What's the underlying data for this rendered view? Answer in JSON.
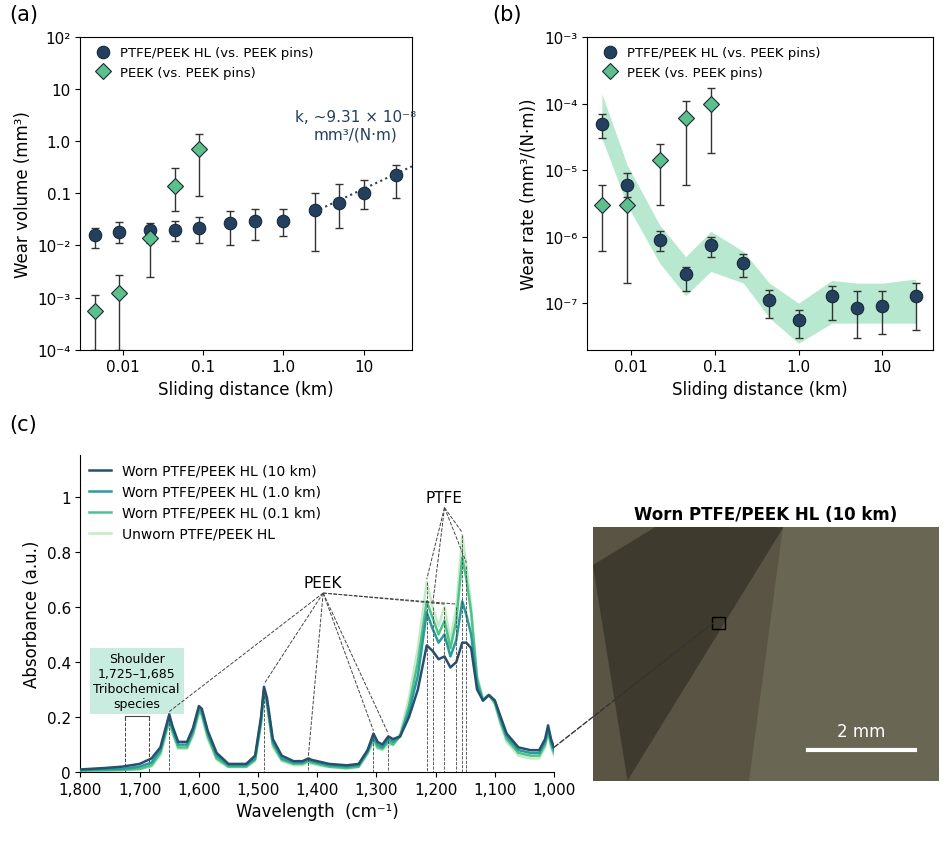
{
  "chart_data": [
    {
      "type": "scatter",
      "panel": "(a)",
      "x_label": "Sliding distance (km)",
      "y_label": "Wear volume (mm³)",
      "log": true,
      "legend": "upper left",
      "xlim": [
        0.003,
        40
      ],
      "ylim": [
        0.0001,
        100
      ],
      "xticks": [
        0.01,
        0.1,
        {
          "value": 1,
          "label": "1.0"
        },
        10
      ],
      "yticks": [
        {
          "value": 0.0001,
          "label": "10⁻⁴"
        },
        {
          "value": 0.001,
          "label": "10⁻³"
        },
        {
          "value": 0.01,
          "label": "10⁻²"
        },
        0.1,
        {
          "value": 1,
          "label": "1.0"
        },
        10,
        {
          "value": 100,
          "label": "10²"
        }
      ],
      "series": [
        {
          "name": "PTFE/PEEK HL (vs. PEEK pins)",
          "color": "#23405e",
          "marker": "circle",
          "x": [
            0.0045,
            0.009,
            0.022,
            0.045,
            0.09,
            0.22,
            0.45,
            1.0,
            2.5,
            5,
            10,
            25
          ],
          "values": [
            0.016,
            0.018,
            0.02,
            0.02,
            0.022,
            0.027,
            0.029,
            0.03,
            0.048,
            0.065,
            0.1,
            0.23
          ],
          "lower": [
            0.009,
            0.011,
            0.011,
            0.012,
            0.011,
            0.01,
            0.013,
            0.015,
            0.008,
            0.022,
            0.05,
            0.08
          ],
          "upper": [
            0.022,
            0.028,
            0.027,
            0.03,
            0.035,
            0.045,
            0.05,
            0.05,
            0.1,
            0.15,
            0.18,
            0.35
          ]
        },
        {
          "name": "PEEK (vs. PEEK pins)",
          "color": "#5cc08a",
          "marker": "diamond",
          "x": [
            0.0045,
            0.009,
            0.022,
            0.045,
            0.09
          ],
          "values": [
            0.00055,
            0.0012,
            0.014,
            0.14,
            0.7
          ],
          "lower": [
            0.0001,
            0.0001,
            0.0025,
            0.045,
            0.09
          ],
          "upper": [
            0.0011,
            0.0027,
            0.02,
            0.3,
            1.4
          ]
        }
      ],
      "fit_line": {
        "x": [
          2.5,
          40
        ],
        "values": [
          0.045,
          0.33
        ],
        "color": "#23405e",
        "line_style": "dotted"
      },
      "annotation": {
        "text": "k, ~9.31 × 10⁻⁸\nmm³/(N·m)",
        "x": 8,
        "y": 1.0,
        "color": "#23405e"
      }
    },
    {
      "type": "scatter",
      "panel": "(b)",
      "x_label": "Sliding distance (km)",
      "y_label": "Wear rate (mm³/(N·m))",
      "log": true,
      "legend": "upper left",
      "xlim": [
        0.003,
        40
      ],
      "ylim": [
        2e-08,
        0.001
      ],
      "xticks": [
        0.01,
        0.1,
        {
          "value": 1,
          "label": "1.0"
        },
        10
      ],
      "yticks": [
        {
          "value": 1e-07,
          "label": "10⁻⁷"
        },
        {
          "value": 1e-06,
          "label": "10⁻⁶"
        },
        {
          "value": 1e-05,
          "label": "10⁻⁵"
        },
        {
          "value": 0.0001,
          "label": "10⁻⁴"
        },
        {
          "value": 0.001,
          "label": "10⁻³"
        }
      ],
      "series": [
        {
          "name": "PTFE/PEEK HL (vs. PEEK pins)",
          "color": "#23405e",
          "marker": "circle",
          "x": [
            0.0045,
            0.009,
            0.022,
            0.045,
            0.09,
            0.22,
            0.45,
            1.0,
            2.5,
            5,
            10,
            25
          ],
          "values": [
            5e-05,
            6e-06,
            9e-07,
            2.7e-07,
            7.5e-07,
            4e-07,
            1.1e-07,
            5.5e-08,
            1.3e-07,
            8.5e-08,
            9e-08,
            1.3e-07
          ],
          "lower": [
            3e-05,
            4e-06,
            6e-07,
            1.5e-07,
            5e-07,
            2.5e-07,
            6e-08,
            3e-08,
            5.5e-08,
            3e-08,
            3.5e-08,
            4e-08
          ],
          "upper": [
            7e-05,
            9e-06,
            1.2e-06,
            3.5e-07,
            1e-06,
            5.5e-07,
            1.6e-07,
            8e-08,
            1.8e-07,
            1.5e-07,
            1.5e-07,
            2e-07
          ],
          "band": {
            "color": "#a6e3c4",
            "lower": [
              3e-05,
              3e-06,
              4e-07,
              1.3e-07,
              3e-07,
              2e-07,
              6e-08,
              2.5e-08,
              5e-08,
              5e-08,
              5e-08,
              5e-08
            ],
            "upper": [
              0.00014,
              1.2e-05,
              1.5e-06,
              5e-07,
              1.2e-06,
              6e-07,
              2e-07,
              1e-07,
              2.2e-07,
              2e-07,
              2e-07,
              2.3e-07
            ]
          }
        },
        {
          "name": "PEEK (vs. PEEK pins)",
          "color": "#5cc08a",
          "marker": "diamond",
          "x": [
            0.0045,
            0.009,
            0.022,
            0.045,
            0.09
          ],
          "values": [
            3e-06,
            3e-06,
            1.4e-05,
            6e-05,
            0.0001
          ],
          "lower": [
            6e-07,
            2e-07,
            3e-06,
            6e-06,
            1.8e-05
          ],
          "upper": [
            6e-06,
            6e-06,
            2.5e-05,
            0.00011,
            0.00017
          ]
        }
      ]
    },
    {
      "type": "line",
      "panel": "(c)",
      "x_label": "Wavelength  (cm⁻¹)",
      "y_label": "Absorbance (a.u.)",
      "legend": "upper left",
      "xlim": [
        1800,
        1000
      ],
      "ylim": [
        0,
        1.15
      ],
      "xticks": [
        {
          "value": 1800,
          "label": "1,800"
        },
        {
          "value": 1700,
          "label": "1,700"
        },
        {
          "value": 1600,
          "label": "1,600"
        },
        {
          "value": 1500,
          "label": "1,500"
        },
        {
          "value": 1400,
          "label": "1,400"
        },
        {
          "value": 1300,
          "label": "1,300"
        },
        {
          "value": 1200,
          "label": "1,200"
        },
        {
          "value": 1100,
          "label": "1,100"
        },
        {
          "value": 1000,
          "label": "1,000"
        }
      ],
      "yticks": [
        0,
        0.2,
        0.4,
        0.6,
        0.8,
        1
      ],
      "x": [
        1800,
        1760,
        1730,
        1700,
        1680,
        1665,
        1655,
        1650,
        1645,
        1635,
        1620,
        1610,
        1600,
        1595,
        1585,
        1570,
        1550,
        1520,
        1505,
        1495,
        1490,
        1485,
        1475,
        1460,
        1440,
        1425,
        1415,
        1410,
        1400,
        1380,
        1350,
        1330,
        1315,
        1305,
        1298,
        1290,
        1280,
        1272,
        1260,
        1245,
        1230,
        1215,
        1205,
        1195,
        1185,
        1175,
        1165,
        1155,
        1148,
        1140,
        1130,
        1120,
        1110,
        1100,
        1090,
        1080,
        1060,
        1040,
        1025,
        1015,
        1010,
        1005,
        1000
      ],
      "series": [
        {
          "name": "Worn PTFE/PEEK HL (10 km)",
          "color": "#25506e",
          "values": [
            0.01,
            0.015,
            0.02,
            0.03,
            0.05,
            0.09,
            0.17,
            0.21,
            0.17,
            0.11,
            0.11,
            0.16,
            0.24,
            0.23,
            0.15,
            0.07,
            0.03,
            0.03,
            0.06,
            0.2,
            0.31,
            0.27,
            0.12,
            0.06,
            0.04,
            0.04,
            0.05,
            0.045,
            0.04,
            0.03,
            0.025,
            0.03,
            0.08,
            0.14,
            0.11,
            0.1,
            0.13,
            0.12,
            0.13,
            0.2,
            0.3,
            0.46,
            0.44,
            0.41,
            0.42,
            0.38,
            0.4,
            0.47,
            0.47,
            0.45,
            0.3,
            0.26,
            0.28,
            0.26,
            0.2,
            0.14,
            0.09,
            0.08,
            0.08,
            0.12,
            0.17,
            0.12,
            0.09
          ]
        },
        {
          "name": "Worn PTFE/PEEK HL (1.0 km)",
          "color": "#2a9a9a",
          "values": [
            0.008,
            0.01,
            0.012,
            0.02,
            0.035,
            0.08,
            0.16,
            0.2,
            0.16,
            0.1,
            0.1,
            0.15,
            0.23,
            0.22,
            0.14,
            0.06,
            0.025,
            0.025,
            0.05,
            0.19,
            0.3,
            0.26,
            0.11,
            0.05,
            0.035,
            0.035,
            0.045,
            0.04,
            0.035,
            0.025,
            0.02,
            0.025,
            0.075,
            0.13,
            0.1,
            0.09,
            0.12,
            0.11,
            0.13,
            0.22,
            0.35,
            0.58,
            0.52,
            0.47,
            0.5,
            0.42,
            0.48,
            0.62,
            0.57,
            0.5,
            0.32,
            0.26,
            0.28,
            0.26,
            0.19,
            0.13,
            0.08,
            0.07,
            0.07,
            0.11,
            0.16,
            0.11,
            0.08
          ]
        },
        {
          "name": "Worn PTFE/PEEK HL (0.1 km)",
          "color": "#4cc38a",
          "values": [
            0.005,
            0.007,
            0.008,
            0.012,
            0.025,
            0.07,
            0.15,
            0.19,
            0.15,
            0.09,
            0.09,
            0.14,
            0.22,
            0.21,
            0.13,
            0.05,
            0.02,
            0.02,
            0.045,
            0.18,
            0.29,
            0.25,
            0.1,
            0.045,
            0.03,
            0.03,
            0.04,
            0.035,
            0.03,
            0.02,
            0.015,
            0.02,
            0.07,
            0.12,
            0.09,
            0.085,
            0.11,
            0.1,
            0.13,
            0.24,
            0.4,
            0.62,
            0.56,
            0.5,
            0.55,
            0.45,
            0.55,
            0.78,
            0.7,
            0.58,
            0.34,
            0.26,
            0.28,
            0.25,
            0.18,
            0.12,
            0.07,
            0.06,
            0.06,
            0.1,
            0.15,
            0.1,
            0.07
          ]
        },
        {
          "name": "Unworn PTFE/PEEK HL",
          "color": "#c4eac6",
          "values": [
            0.005,
            0.006,
            0.007,
            0.01,
            0.02,
            0.06,
            0.14,
            0.18,
            0.14,
            0.085,
            0.085,
            0.13,
            0.21,
            0.2,
            0.12,
            0.045,
            0.018,
            0.018,
            0.04,
            0.17,
            0.28,
            0.24,
            0.09,
            0.04,
            0.025,
            0.025,
            0.035,
            0.03,
            0.025,
            0.018,
            0.012,
            0.018,
            0.065,
            0.11,
            0.085,
            0.08,
            0.1,
            0.1,
            0.14,
            0.27,
            0.45,
            0.69,
            0.6,
            0.53,
            0.6,
            0.48,
            0.6,
            0.86,
            0.75,
            0.6,
            0.35,
            0.27,
            0.28,
            0.25,
            0.17,
            0.11,
            0.06,
            0.05,
            0.05,
            0.09,
            0.14,
            0.09,
            0.06
          ]
        }
      ],
      "annotations": [
        {
          "text": "PEEK",
          "x": 1390,
          "y": 0.66,
          "peaks": [
            1650,
            1490,
            1415,
            1305,
            1280,
            1185,
            1165
          ]
        },
        {
          "text": "PTFE",
          "x": 1185,
          "y": 0.97,
          "peaks": [
            1215,
            1205,
            1155,
            1148
          ]
        }
      ],
      "shoulder": {
        "text": "Shoulder\n1,725–1,685\nTribochemical\nspecies",
        "range": [
          1725,
          1685
        ],
        "color": "#c9ece0"
      }
    }
  ],
  "photo": {
    "title": "Worn PTFE/PEEK HL (10 km)",
    "scale_bar": "2 mm"
  }
}
